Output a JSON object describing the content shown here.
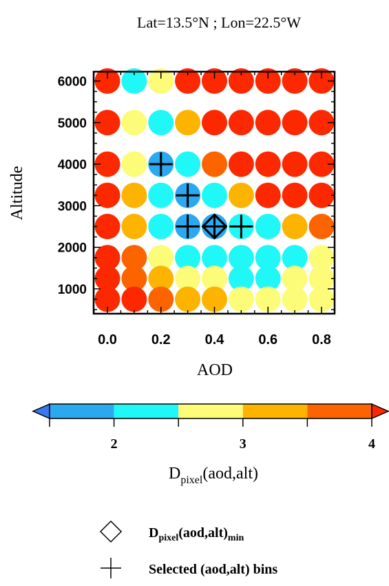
{
  "chart_data": {
    "type": "scatter",
    "title": "Lat=13.5°N ; Lon=22.5°W",
    "xlabel": "AOD",
    "ylabel": "Altitude",
    "xlim": [
      -0.05,
      0.85
    ],
    "ylim": [
      250,
      6300
    ],
    "x_ticks": [
      0.0,
      0.2,
      0.4,
      0.6,
      0.8
    ],
    "x_tick_labels": [
      "0.0",
      "0.2",
      "0.4",
      "0.6",
      "0.8"
    ],
    "y_ticks": [
      1000,
      2000,
      3000,
      4000,
      5000,
      6000
    ],
    "y_tick_labels": [
      "1000",
      "2000",
      "3000",
      "4000",
      "5000",
      "6000"
    ],
    "aod_bins": [
      0.0,
      0.1,
      0.2,
      0.3,
      0.4,
      0.5,
      0.6,
      0.7,
      0.8
    ],
    "altitude_bins": [
      750,
      1250,
      1750,
      2500,
      3250,
      4000,
      5000,
      6000
    ],
    "colorbar": {
      "label_main": "D",
      "label_sub": "pixel",
      "label_tail": "(aod,alt)",
      "ticks": [
        2,
        3,
        4
      ],
      "tick_labels": [
        "2",
        "3",
        "4"
      ],
      "range": [
        1.5,
        4.0
      ],
      "bounds": [
        1.5,
        2.0,
        2.5,
        3.0,
        3.5,
        4.0
      ],
      "colors": [
        "#2aa8f0",
        "#20f8f8",
        "#fcfc78",
        "#fcb400",
        "#fc6400"
      ],
      "under_color": "#3a78f0",
      "over_color": "#fc2800"
    },
    "color_classes": {
      "0": "#2aa8f0",
      "1": "#20f8f8",
      "2": "#fcfc78",
      "3": "#fcb400",
      "4": "#fc6400",
      "5": "#fc2800"
    },
    "rows": [
      {
        "altitude": 6000,
        "classes": [
          5,
          1,
          2,
          5,
          5,
          5,
          5,
          5,
          5
        ]
      },
      {
        "altitude": 5000,
        "classes": [
          5,
          2,
          1,
          3,
          5,
          5,
          5,
          5,
          5
        ]
      },
      {
        "altitude": 4000,
        "classes": [
          5,
          2,
          0,
          1,
          4,
          5,
          5,
          5,
          5
        ]
      },
      {
        "altitude": 3250,
        "classes": [
          5,
          3,
          1,
          0,
          1,
          3,
          5,
          5,
          5
        ]
      },
      {
        "altitude": 2500,
        "classes": [
          5,
          3,
          1,
          0,
          0,
          1,
          1,
          3,
          4
        ]
      },
      {
        "altitude": 1750,
        "classes": [
          5,
          4,
          2,
          1,
          1,
          1,
          1,
          1,
          2
        ]
      },
      {
        "altitude": 1250,
        "classes": [
          5,
          4,
          3,
          2,
          2,
          1,
          1,
          2,
          2
        ]
      },
      {
        "altitude": 750,
        "classes": [
          5,
          5,
          4,
          3,
          3,
          2,
          2,
          2,
          2
        ]
      }
    ],
    "selected_bins": [
      {
        "aod": 0.2,
        "altitude": 4000
      },
      {
        "aod": 0.3,
        "altitude": 3250
      },
      {
        "aod": 0.3,
        "altitude": 2500
      },
      {
        "aod": 0.4,
        "altitude": 2500
      },
      {
        "aod": 0.5,
        "altitude": 2500
      }
    ],
    "minimum_bin": {
      "aod": 0.4,
      "altitude": 2500
    },
    "legend": {
      "min_main": "D",
      "min_sub": "pixel",
      "min_mid": "(aod,alt)",
      "min_sub2": "min",
      "selected_label": "Selected (aod,alt) bins"
    }
  }
}
